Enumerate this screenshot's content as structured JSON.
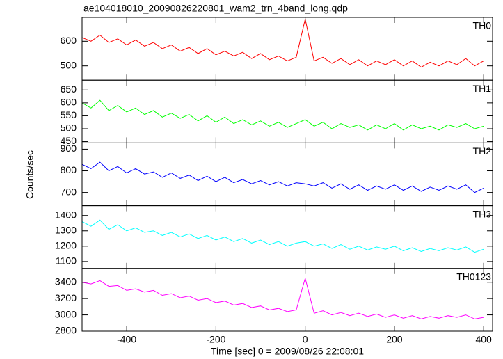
{
  "chart_data": {
    "type": "line",
    "title": "ae104018010_20090826220801_wam2_trn_4band_long.qdp",
    "ylabel": "Counts/sec",
    "xlabel": "Time [sec] 0 = 2009/08/26 22:08:01",
    "xlim": [
      -500,
      420
    ],
    "xticks": [
      -400,
      -200,
      0,
      200,
      400
    ],
    "x": [
      -500,
      -480,
      -460,
      -440,
      -420,
      -400,
      -380,
      -360,
      -340,
      -320,
      -300,
      -280,
      -260,
      -240,
      -220,
      -200,
      -180,
      -160,
      -140,
      -120,
      -100,
      -80,
      -60,
      -40,
      -20,
      0,
      20,
      40,
      60,
      80,
      100,
      120,
      140,
      160,
      180,
      200,
      220,
      240,
      260,
      280,
      300,
      320,
      340,
      360,
      380,
      400
    ],
    "series": [
      {
        "name": "TH0",
        "color": "#ff0000",
        "ylim": [
          442,
          697
        ],
        "yticks": [
          500,
          600
        ],
        "values": [
          615,
          600,
          625,
          595,
          610,
          585,
          605,
          580,
          595,
          570,
          585,
          560,
          575,
          550,
          570,
          545,
          560,
          540,
          555,
          530,
          550,
          525,
          540,
          520,
          535,
          690,
          520,
          535,
          510,
          530,
          505,
          525,
          500,
          520,
          505,
          525,
          500,
          520,
          495,
          515,
          500,
          520,
          505,
          530,
          500,
          520
        ]
      },
      {
        "name": "TH1",
        "color": "#00ff00",
        "ylim": [
          445,
          688
        ],
        "yticks": [
          450,
          500,
          550,
          600,
          650
        ],
        "values": [
          600,
          580,
          610,
          570,
          590,
          565,
          580,
          555,
          570,
          545,
          560,
          540,
          555,
          530,
          550,
          525,
          545,
          520,
          535,
          515,
          530,
          510,
          525,
          505,
          520,
          535,
          510,
          525,
          500,
          520,
          505,
          515,
          495,
          515,
          500,
          520,
          495,
          515,
          500,
          510,
          495,
          515,
          505,
          520,
          500,
          510
        ]
      },
      {
        "name": "TH2",
        "color": "#0000ff",
        "ylim": [
          639,
          929
        ],
        "yticks": [
          700,
          800,
          900
        ],
        "values": [
          830,
          810,
          840,
          800,
          820,
          790,
          810,
          785,
          795,
          770,
          790,
          765,
          780,
          755,
          775,
          750,
          770,
          745,
          760,
          740,
          755,
          735,
          750,
          730,
          745,
          740,
          730,
          745,
          720,
          740,
          715,
          735,
          710,
          730,
          715,
          735,
          710,
          730,
          705,
          725,
          710,
          730,
          715,
          735,
          700,
          720
        ]
      },
      {
        "name": "TH3",
        "color": "#00ffff",
        "ylim": [
          1055,
          1464
        ],
        "yticks": [
          1100,
          1200,
          1300,
          1400
        ],
        "values": [
          1360,
          1330,
          1370,
          1310,
          1340,
          1300,
          1320,
          1290,
          1300,
          1270,
          1290,
          1260,
          1280,
          1250,
          1270,
          1240,
          1260,
          1230,
          1250,
          1220,
          1240,
          1210,
          1230,
          1200,
          1220,
          1230,
          1200,
          1215,
          1185,
          1210,
          1180,
          1200,
          1175,
          1195,
          1180,
          1200,
          1170,
          1190,
          1165,
          1185,
          1170,
          1190,
          1175,
          1195,
          1160,
          1180
        ]
      },
      {
        "name": "TH0123",
        "color": "#ff00ff",
        "ylim": [
          2800,
          3570
        ],
        "yticks": [
          2800,
          3000,
          3200,
          3400
        ],
        "values": [
          3400,
          3380,
          3420,
          3350,
          3360,
          3300,
          3320,
          3280,
          3300,
          3240,
          3260,
          3210,
          3230,
          3180,
          3200,
          3150,
          3170,
          3120,
          3140,
          3090,
          3110,
          3060,
          3080,
          3040,
          3060,
          3450,
          3020,
          3050,
          3000,
          3030,
          2990,
          3020,
          2980,
          3010,
          2970,
          3000,
          2960,
          2990,
          2950,
          2980,
          2960,
          2990,
          2970,
          3000,
          2950,
          2970
        ]
      }
    ]
  }
}
